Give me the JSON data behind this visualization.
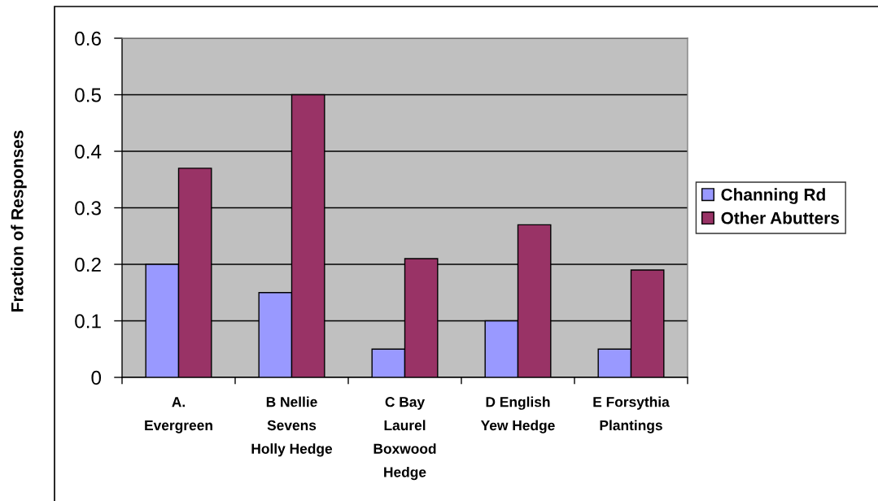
{
  "chart_data": {
    "type": "bar",
    "ylabel": "Fraction of Responses",
    "categories": [
      "A.\nEvergreen",
      "B Nellie\nSevens\nHolly Hedge",
      "C Bay\nLaurel\nBoxwood\nHedge",
      "D English\nYew Hedge",
      "E Forsythia\nPlantings"
    ],
    "series": [
      {
        "name": "Channing Rd",
        "color": "#9999ff",
        "values": [
          0.2,
          0.15,
          0.05,
          0.1,
          0.05
        ]
      },
      {
        "name": "Other Abutters",
        "color": "#993366",
        "values": [
          0.37,
          0.5,
          0.21,
          0.27,
          0.19
        ]
      }
    ],
    "ylim": [
      0,
      0.6
    ],
    "yticks": [
      0,
      0.1,
      0.2,
      0.3,
      0.4,
      0.5,
      0.6
    ],
    "grid": "y",
    "legend": "right"
  }
}
